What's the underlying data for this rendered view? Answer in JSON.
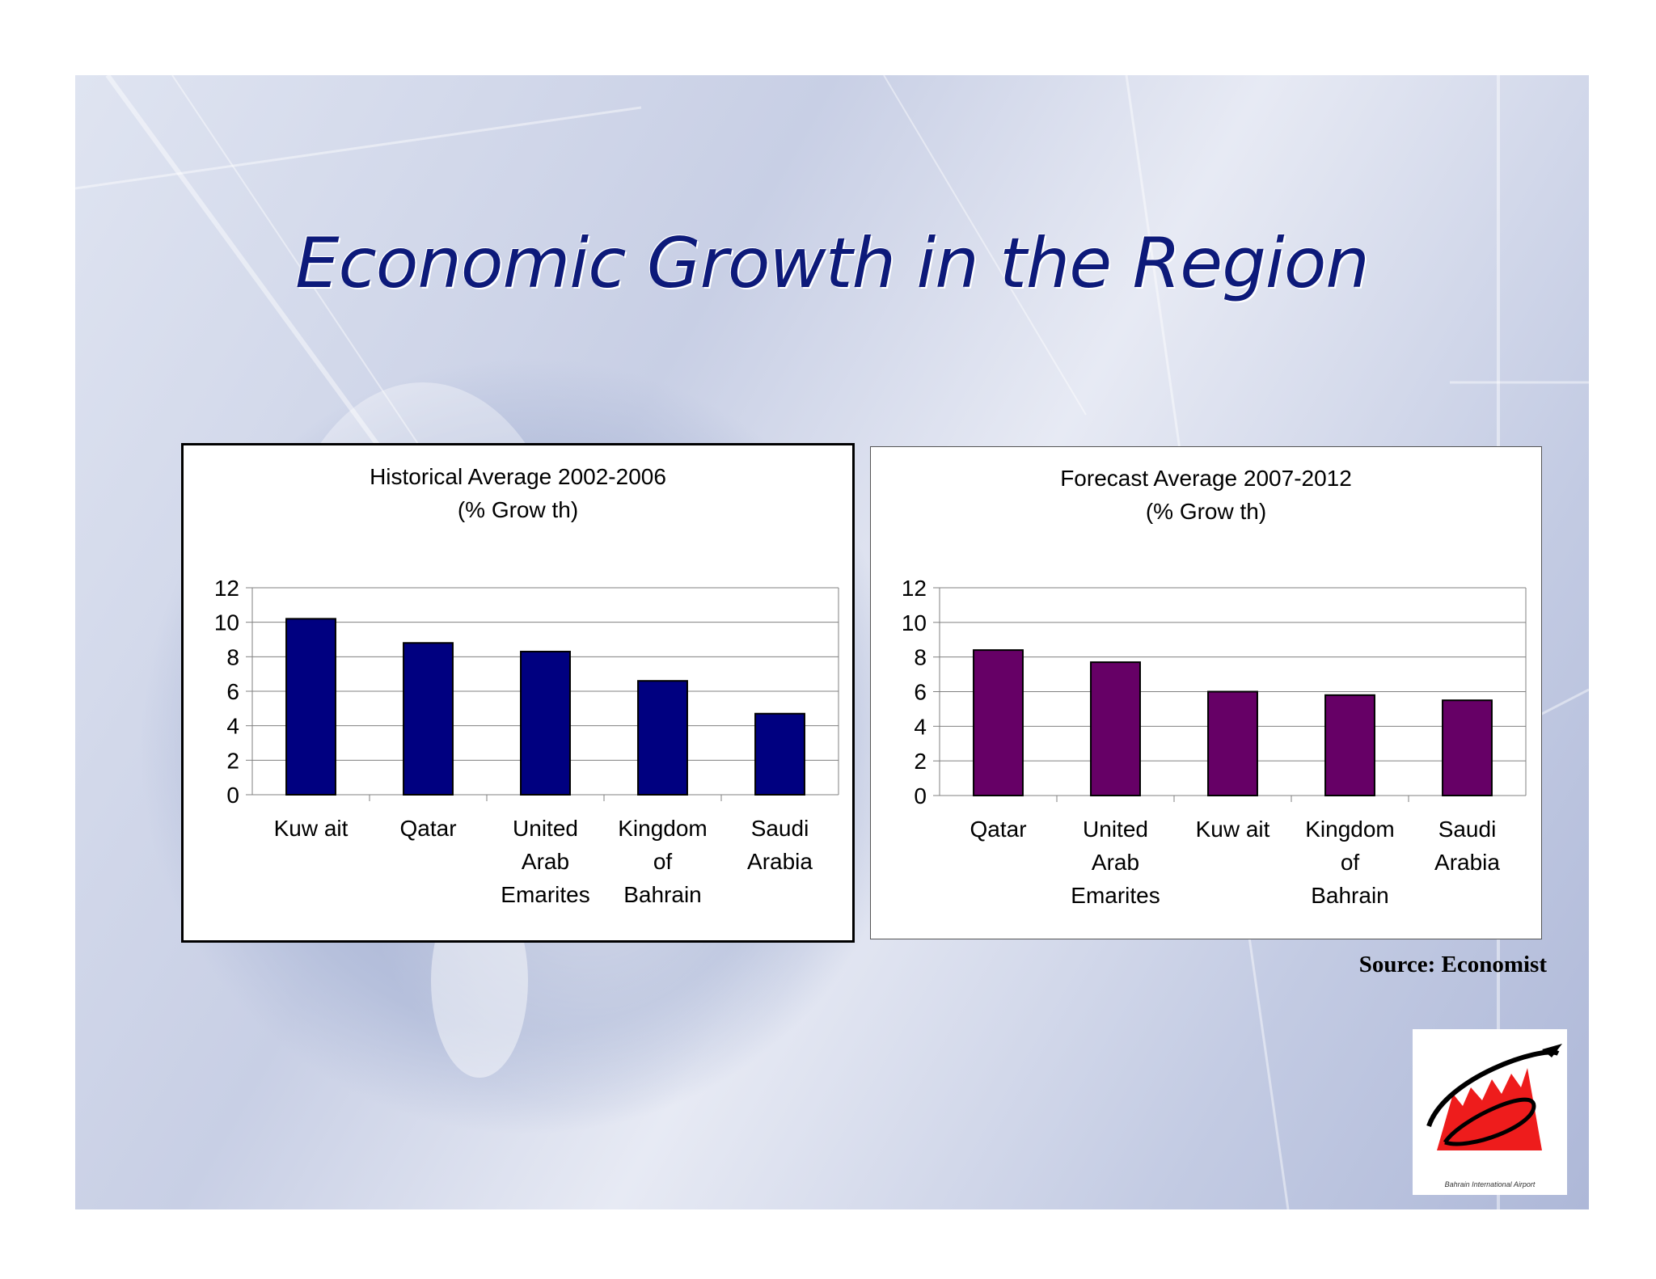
{
  "slide": {
    "title": "Economic Growth in the Region",
    "source": "Source: Economist",
    "logo_caption": "Bahrain International Airport",
    "colors": {
      "title": "#0d1a7a",
      "background": "#c8cfe5"
    }
  },
  "chart_data": [
    {
      "type": "bar",
      "title": "Historical Average 2002-2006",
      "subtitle": "(% Grow th)",
      "categories": [
        "Kuw ait",
        "Qatar",
        "United Arab Emarites",
        "Kingdom of Bahrain",
        "Saudi Arabia"
      ],
      "category_lines": [
        [
          "Kuw ait"
        ],
        [
          "Qatar"
        ],
        [
          "United",
          "Arab",
          "Emarites"
        ],
        [
          "Kingdom",
          "of",
          "Bahrain"
        ],
        [
          "Saudi",
          "Arabia"
        ]
      ],
      "values": [
        10.2,
        8.8,
        8.3,
        6.6,
        4.7
      ],
      "ylim": [
        0,
        12
      ],
      "yticks": [
        0,
        2,
        4,
        6,
        8,
        10,
        12
      ],
      "grid": true,
      "color": "#000080"
    },
    {
      "type": "bar",
      "title": "Forecast Average 2007-2012",
      "subtitle": "(% Grow th)",
      "categories": [
        "Qatar",
        "United Arab Emarites",
        "Kuw ait",
        "Kingdom of Bahrain",
        "Saudi Arabia"
      ],
      "category_lines": [
        [
          "Qatar"
        ],
        [
          "United",
          "Arab",
          "Emarites"
        ],
        [
          "Kuw ait"
        ],
        [
          "Kingdom",
          "of",
          "Bahrain"
        ],
        [
          "Saudi",
          "Arabia"
        ]
      ],
      "values": [
        8.4,
        7.7,
        6.0,
        5.8,
        5.5
      ],
      "ylim": [
        0,
        12
      ],
      "yticks": [
        0,
        2,
        4,
        6,
        8,
        10,
        12
      ],
      "grid": true,
      "color": "#660066"
    }
  ]
}
